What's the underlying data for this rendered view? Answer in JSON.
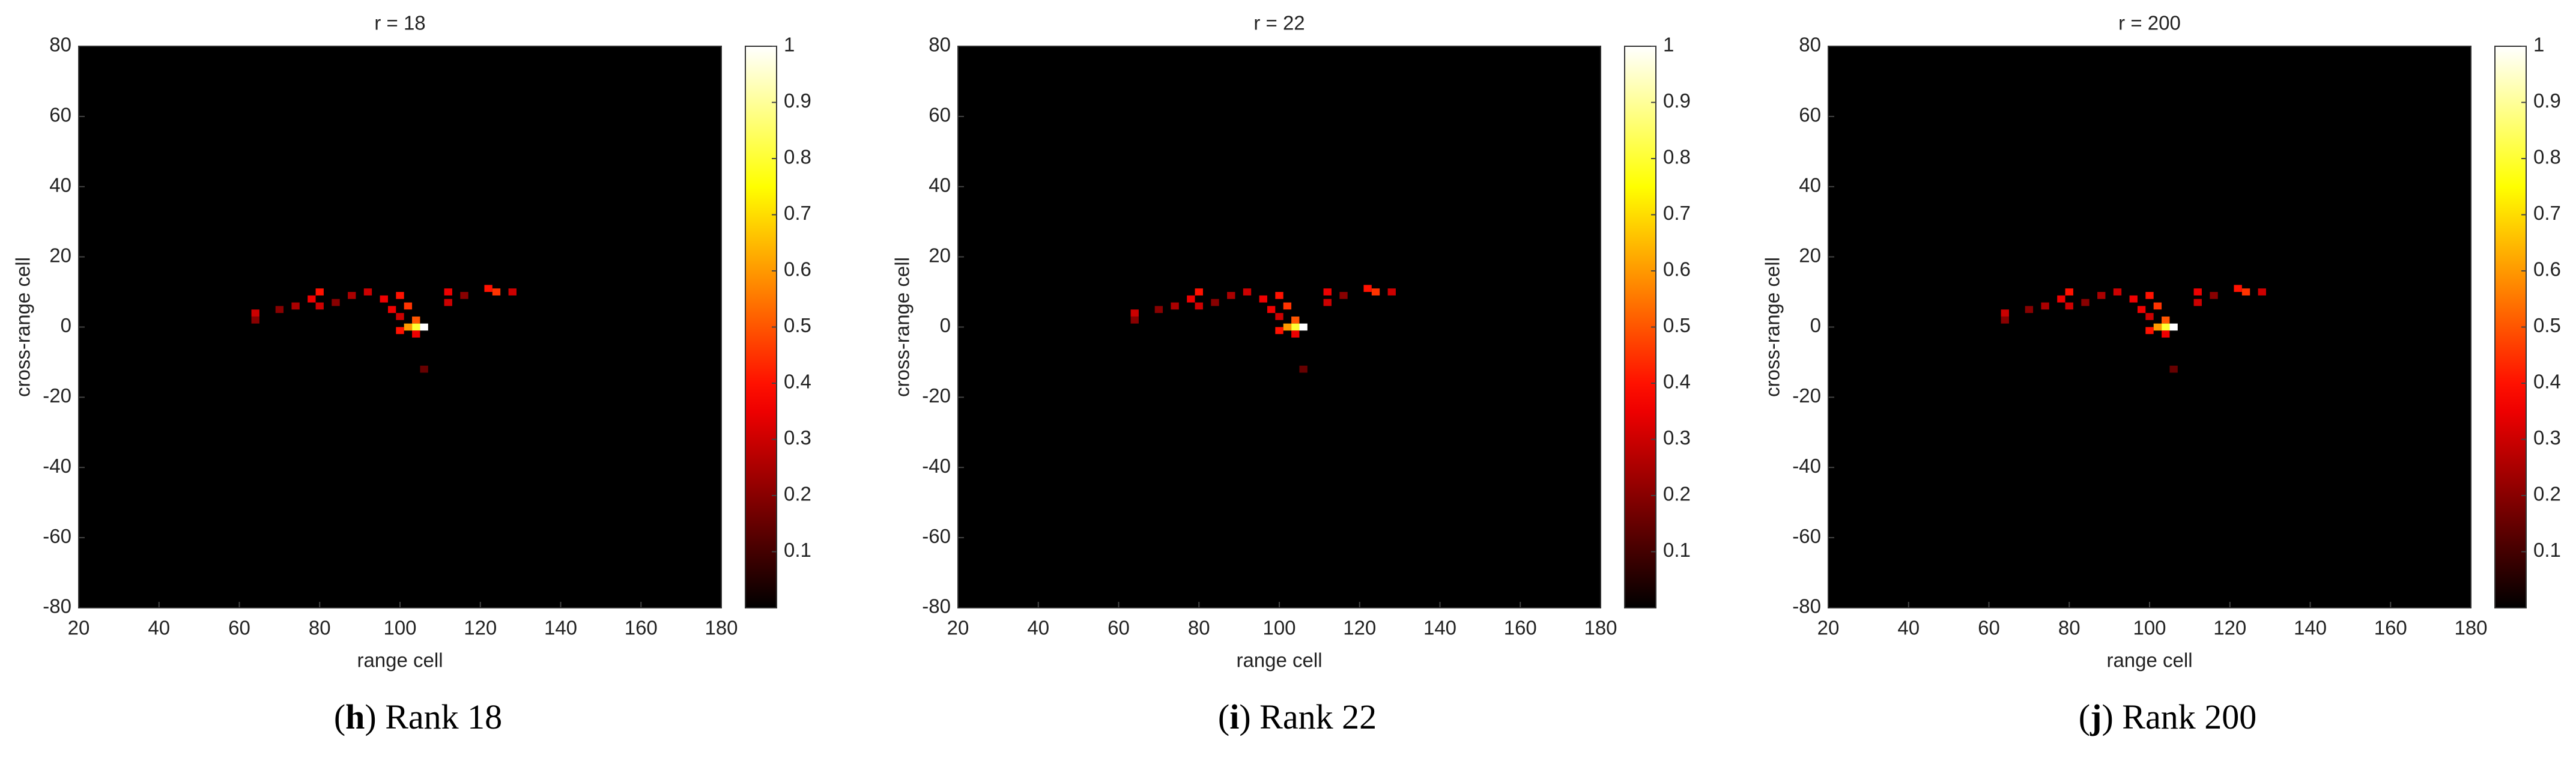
{
  "chart_data": [
    {
      "type": "heatmap",
      "title": "r = 18",
      "xlabel": "range cell",
      "ylabel": "cross-range cell",
      "caption_letter": "h",
      "caption_text": "Rank 18",
      "xlim": [
        20,
        180
      ],
      "xticks": [
        20,
        40,
        60,
        80,
        100,
        120,
        140,
        160,
        180
      ],
      "ylim": [
        -80,
        80
      ],
      "yticks": [
        -80,
        -60,
        -40,
        -20,
        0,
        20,
        40,
        60,
        80
      ],
      "clim": [
        0,
        1
      ],
      "cticks": [
        0.1,
        0.2,
        0.3,
        0.4,
        0.5,
        0.6,
        0.7,
        0.8,
        0.9,
        1
      ],
      "colormap": "hot",
      "x": [
        64,
        64,
        70,
        74,
        78,
        80,
        80,
        84,
        88,
        92,
        96,
        100,
        98,
        102,
        100,
        104,
        104,
        106,
        102,
        100,
        104,
        106,
        112,
        112,
        116,
        122,
        124,
        128
      ],
      "y": [
        4,
        2,
        5,
        6,
        8,
        10,
        6,
        7,
        9,
        10,
        8,
        9,
        5,
        6,
        3,
        2,
        0,
        0,
        0,
        -1,
        -2,
        -12,
        10,
        7,
        9,
        11,
        10,
        10
      ],
      "values": [
        0.3,
        0.2,
        0.2,
        0.25,
        0.35,
        0.4,
        0.3,
        0.2,
        0.25,
        0.3,
        0.35,
        0.4,
        0.35,
        0.45,
        0.3,
        0.5,
        0.8,
        1,
        0.6,
        0.4,
        0.35,
        0.15,
        0.35,
        0.3,
        0.2,
        0.4,
        0.45,
        0.3
      ]
    },
    {
      "type": "heatmap",
      "title": "r = 22",
      "xlabel": "range cell",
      "ylabel": "cross-range cell",
      "caption_letter": "i",
      "caption_text": "Rank 22",
      "xlim": [
        20,
        180
      ],
      "xticks": [
        20,
        40,
        60,
        80,
        100,
        120,
        140,
        160,
        180
      ],
      "ylim": [
        -80,
        80
      ],
      "yticks": [
        -80,
        -60,
        -40,
        -20,
        0,
        20,
        40,
        60,
        80
      ],
      "clim": [
        0,
        1
      ],
      "cticks": [
        0.1,
        0.2,
        0.3,
        0.4,
        0.5,
        0.6,
        0.7,
        0.8,
        0.9,
        1
      ],
      "colormap": "hot",
      "x": [
        64,
        64,
        70,
        74,
        78,
        80,
        80,
        84,
        88,
        92,
        96,
        100,
        98,
        102,
        100,
        104,
        104,
        106,
        102,
        100,
        104,
        106,
        112,
        112,
        116,
        122,
        124,
        128
      ],
      "y": [
        4,
        2,
        5,
        6,
        8,
        10,
        6,
        7,
        9,
        10,
        8,
        9,
        5,
        6,
        3,
        2,
        0,
        0,
        0,
        -1,
        -2,
        -12,
        10,
        7,
        9,
        11,
        10,
        10
      ],
      "values": [
        0.3,
        0.2,
        0.2,
        0.25,
        0.35,
        0.4,
        0.3,
        0.2,
        0.25,
        0.3,
        0.35,
        0.4,
        0.35,
        0.45,
        0.3,
        0.5,
        0.8,
        1,
        0.6,
        0.4,
        0.35,
        0.15,
        0.35,
        0.3,
        0.2,
        0.4,
        0.45,
        0.3
      ]
    },
    {
      "type": "heatmap",
      "title": "r = 200",
      "xlabel": "range cell",
      "ylabel": "cross-range cell",
      "caption_letter": "j",
      "caption_text": "Rank 200",
      "xlim": [
        20,
        180
      ],
      "xticks": [
        20,
        40,
        60,
        80,
        100,
        120,
        140,
        160,
        180
      ],
      "ylim": [
        -80,
        80
      ],
      "yticks": [
        -80,
        -60,
        -40,
        -20,
        0,
        20,
        40,
        60,
        80
      ],
      "clim": [
        0,
        1
      ],
      "cticks": [
        0.1,
        0.2,
        0.3,
        0.4,
        0.5,
        0.6,
        0.7,
        0.8,
        0.9,
        1
      ],
      "colormap": "hot",
      "x": [
        64,
        64,
        70,
        74,
        78,
        80,
        80,
        84,
        88,
        92,
        96,
        100,
        98,
        102,
        100,
        104,
        104,
        106,
        102,
        100,
        104,
        106,
        112,
        112,
        116,
        122,
        124,
        128
      ],
      "y": [
        4,
        2,
        5,
        6,
        8,
        10,
        6,
        7,
        9,
        10,
        8,
        9,
        5,
        6,
        3,
        2,
        0,
        0,
        0,
        -1,
        -2,
        -12,
        10,
        7,
        9,
        11,
        10,
        10
      ],
      "values": [
        0.3,
        0.2,
        0.2,
        0.25,
        0.35,
        0.4,
        0.3,
        0.2,
        0.25,
        0.3,
        0.35,
        0.4,
        0.35,
        0.45,
        0.3,
        0.5,
        0.8,
        1,
        0.6,
        0.4,
        0.35,
        0.15,
        0.35,
        0.3,
        0.2,
        0.4,
        0.45,
        0.3
      ]
    }
  ]
}
